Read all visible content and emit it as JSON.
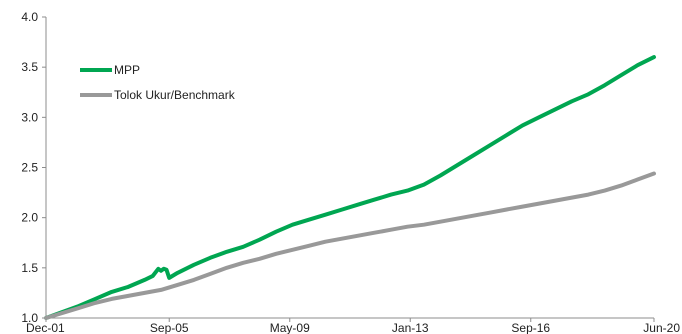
{
  "chart_data": {
    "type": "line",
    "title": "",
    "xlabel": "",
    "ylabel": "",
    "ylim": [
      1.0,
      4.0
    ],
    "yticks": [
      "1.0",
      "1.5",
      "2.0",
      "2.5",
      "3.0",
      "3.5",
      "4.0"
    ],
    "xlim": [
      "Dec-01",
      "Jun-20"
    ],
    "xticks": [
      "Dec-01",
      "Sep-05",
      "May-09",
      "Jan-13",
      "Sep-16",
      "Jun-20"
    ],
    "grid": false,
    "legend_position": "top-left",
    "series": [
      {
        "name": "MPP",
        "color": "#00a651",
        "points": [
          [
            "Dec-01",
            1.0
          ],
          [
            "Jun-02",
            1.06
          ],
          [
            "Dec-02",
            1.12
          ],
          [
            "Jun-03",
            1.19
          ],
          [
            "Dec-03",
            1.26
          ],
          [
            "Jun-04",
            1.31
          ],
          [
            "Dec-04",
            1.38
          ],
          [
            "Mar-05",
            1.42
          ],
          [
            "May-05",
            1.49
          ],
          [
            "Jun-05",
            1.47
          ],
          [
            "Jul-05",
            1.49
          ],
          [
            "Aug-05",
            1.48
          ],
          [
            "Sep-05",
            1.4
          ],
          [
            "Dec-05",
            1.45
          ],
          [
            "Jun-06",
            1.53
          ],
          [
            "Dec-06",
            1.6
          ],
          [
            "Jun-07",
            1.66
          ],
          [
            "Dec-07",
            1.71
          ],
          [
            "Jun-08",
            1.78
          ],
          [
            "Dec-08",
            1.86
          ],
          [
            "Jun-09",
            1.93
          ],
          [
            "Dec-09",
            1.98
          ],
          [
            "Jun-10",
            2.03
          ],
          [
            "Dec-10",
            2.08
          ],
          [
            "Jun-11",
            2.13
          ],
          [
            "Dec-11",
            2.18
          ],
          [
            "Jun-12",
            2.23
          ],
          [
            "Dec-12",
            2.27
          ],
          [
            "Jun-13",
            2.33
          ],
          [
            "Dec-13",
            2.42
          ],
          [
            "Jun-14",
            2.52
          ],
          [
            "Dec-14",
            2.62
          ],
          [
            "Jun-15",
            2.72
          ],
          [
            "Dec-15",
            2.82
          ],
          [
            "Jun-16",
            2.92
          ],
          [
            "Dec-16",
            3.0
          ],
          [
            "Jun-17",
            3.08
          ],
          [
            "Dec-17",
            3.16
          ],
          [
            "Jun-18",
            3.23
          ],
          [
            "Dec-18",
            3.32
          ],
          [
            "Jun-19",
            3.42
          ],
          [
            "Dec-19",
            3.52
          ],
          [
            "Jun-20",
            3.6
          ]
        ]
      },
      {
        "name": "Tolok Ukur/Benchmark",
        "color": "#999999",
        "points": [
          [
            "Dec-01",
            1.0
          ],
          [
            "Jun-02",
            1.05
          ],
          [
            "Dec-02",
            1.1
          ],
          [
            "Jun-03",
            1.15
          ],
          [
            "Dec-03",
            1.19
          ],
          [
            "Jun-04",
            1.22
          ],
          [
            "Dec-04",
            1.25
          ],
          [
            "Jun-05",
            1.28
          ],
          [
            "Dec-05",
            1.33
          ],
          [
            "Jun-06",
            1.38
          ],
          [
            "Dec-06",
            1.44
          ],
          [
            "Jun-07",
            1.5
          ],
          [
            "Dec-07",
            1.55
          ],
          [
            "Jun-08",
            1.59
          ],
          [
            "Dec-08",
            1.64
          ],
          [
            "Jun-09",
            1.68
          ],
          [
            "Dec-09",
            1.72
          ],
          [
            "Jun-10",
            1.76
          ],
          [
            "Dec-10",
            1.79
          ],
          [
            "Jun-11",
            1.82
          ],
          [
            "Dec-11",
            1.85
          ],
          [
            "Jun-12",
            1.88
          ],
          [
            "Dec-12",
            1.91
          ],
          [
            "Jun-13",
            1.93
          ],
          [
            "Dec-13",
            1.96
          ],
          [
            "Jun-14",
            1.99
          ],
          [
            "Dec-14",
            2.02
          ],
          [
            "Jun-15",
            2.05
          ],
          [
            "Dec-15",
            2.08
          ],
          [
            "Jun-16",
            2.11
          ],
          [
            "Dec-16",
            2.14
          ],
          [
            "Jun-17",
            2.17
          ],
          [
            "Dec-17",
            2.2
          ],
          [
            "Jun-18",
            2.23
          ],
          [
            "Dec-18",
            2.27
          ],
          [
            "Jun-19",
            2.32
          ],
          [
            "Dec-19",
            2.38
          ],
          [
            "Jun-20",
            2.44
          ]
        ]
      }
    ]
  }
}
